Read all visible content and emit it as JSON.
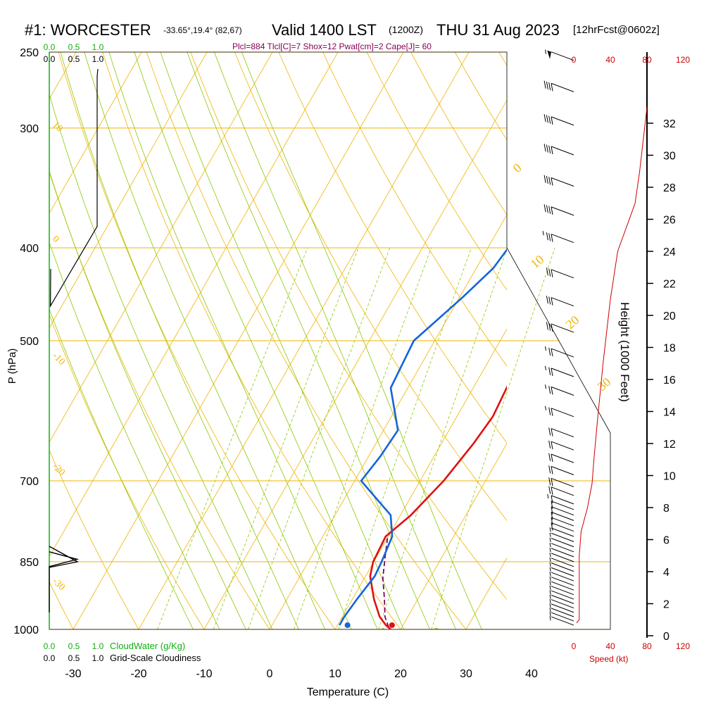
{
  "header": {
    "station": "#1: WORCESTER",
    "coords": "-33.65°,19.4° (82,67)",
    "valid": "Valid 1400 LST",
    "utc": "(1200Z)",
    "date": "THU 31 Aug 2023",
    "forecast": "[12hrFcst@0602z]",
    "indices": "Plcl=884 Tlcl[C]=7 Shox=12 Pwat[cm]=2 Cape[J]= 60"
  },
  "labels": {
    "pressure_axis": "P (hPa)",
    "temperature_axis": "Temperature (C)",
    "height_axis": "Height (1000 Feet)",
    "speed_label": "Speed (kt)",
    "cloudwater_label": "CloudWater (g/Kg)",
    "cloudiness_label": "Grid-Scale Cloudiness",
    "cloud_top_ticks": [
      "0.0",
      "0.5",
      "1.0"
    ],
    "speed_ticks": [
      "0",
      "40",
      "80",
      "120"
    ]
  },
  "colors": {
    "isotherm": "#f0b400",
    "dry_adiabat": "#f0b400",
    "moist_adiabat": "#8cc800",
    "mixing_ratio": "#8cc800",
    "temperature": "#e01010",
    "dewpoint": "#1464dc",
    "parcel": "#800060",
    "cloudwater": "#10b010",
    "speed": "#cc0000",
    "indices": "#880055"
  },
  "chart_data": {
    "type": "skew-t",
    "pressure_ticks": [
      250,
      300,
      400,
      500,
      700,
      850,
      1000
    ],
    "temperature_ticks": [
      -30,
      -20,
      -10,
      0,
      10,
      20,
      30,
      40
    ],
    "height_ticks_kft": [
      0,
      2,
      4,
      6,
      8,
      10,
      12,
      14,
      16,
      18,
      20,
      22,
      24,
      26,
      28,
      30,
      32
    ],
    "isotherm_labels": [
      {
        "value": "0",
        "p": 340
      },
      {
        "value": "10",
        "p": 430
      },
      {
        "value": "20",
        "p": 490
      },
      {
        "value": "30",
        "p": 580
      }
    ],
    "dry_adiabat_labels": [
      {
        "value": "10",
        "p": 300
      },
      {
        "value": "-10",
        "p": 520
      },
      {
        "value": "-20",
        "p": 690
      },
      {
        "value": "-30",
        "p": 880
      },
      {
        "value": "0",
        "p": 395
      }
    ],
    "mixing_ratio_labels": [
      "1",
      "2",
      "3",
      "5",
      "8",
      "12",
      "20"
    ],
    "temperature_profile": [
      {
        "p": 1000,
        "t": 18.5
      },
      {
        "p": 990,
        "t": 17.4
      },
      {
        "p": 970,
        "t": 15.7
      },
      {
        "p": 930,
        "t": 13.3
      },
      {
        "p": 880,
        "t": 10.7
      },
      {
        "p": 850,
        "t": 9.9
      },
      {
        "p": 800,
        "t": 9.6
      },
      {
        "p": 760,
        "t": 11.6
      },
      {
        "p": 700,
        "t": 13.6
      },
      {
        "p": 640,
        "t": 14.9
      },
      {
        "p": 600,
        "t": 15.5
      },
      {
        "p": 550,
        "t": 15.0
      },
      {
        "p": 500,
        "t": 13.3
      },
      {
        "p": 450,
        "t": 9.8
      },
      {
        "p": 400,
        "t": 6.6
      },
      {
        "p": 350,
        "t": 3.2
      },
      {
        "p": 300,
        "t": 0.2
      },
      {
        "p": 275,
        "t": -1.8
      },
      {
        "p": 260,
        "t": -2.0
      }
    ],
    "dewpoint_profile": [
      {
        "p": 990,
        "t": 10.3
      },
      {
        "p": 970,
        "t": 10.3
      },
      {
        "p": 930,
        "t": 10.7
      },
      {
        "p": 880,
        "t": 11.4
      },
      {
        "p": 850,
        "t": 11.2
      },
      {
        "p": 800,
        "t": 10.6
      },
      {
        "p": 760,
        "t": 8.5
      },
      {
        "p": 700,
        "t": 1.0
      },
      {
        "p": 660,
        "t": 1.8
      },
      {
        "p": 620,
        "t": 2.2
      },
      {
        "p": 560,
        "t": -2.6
      },
      {
        "p": 500,
        "t": -3.2
      },
      {
        "p": 450,
        "t": 0.5
      },
      {
        "p": 420,
        "t": 2.6
      },
      {
        "p": 390,
        "t": 3.4
      },
      {
        "p": 370,
        "t": 2.4
      },
      {
        "p": 340,
        "t": -0.4
      },
      {
        "p": 300,
        "t": -3.2
      },
      {
        "p": 275,
        "t": -5.0
      },
      {
        "p": 260,
        "t": -5.6
      }
    ],
    "parcel_profile": [
      {
        "p": 995,
        "t": 18.0
      },
      {
        "p": 970,
        "t": 16.5
      },
      {
        "p": 930,
        "t": 14.9
      },
      {
        "p": 884,
        "t": 12.8
      },
      {
        "p": 840,
        "t": 11.3
      },
      {
        "p": 800,
        "t": 9.9
      }
    ],
    "surface_temperature": 18.8,
    "surface_dewpoint": 12.0,
    "cloudwater_profile": [
      {
        "p": 960,
        "v": 0.0
      },
      {
        "p": 860,
        "v": 0.0
      },
      {
        "p": 845,
        "v": 0.45
      },
      {
        "p": 830,
        "v": 0.0
      }
    ],
    "cloudiness_profile": [
      {
        "p": 265,
        "v": 0.85
      },
      {
        "p": 380,
        "v": 0.85
      },
      {
        "p": 460,
        "v": 0.02
      }
    ],
    "wind_speed_profile": [
      {
        "h": 0.8,
        "kt": 3
      },
      {
        "h": 1.0,
        "kt": 6
      },
      {
        "h": 2.0,
        "kt": 6
      },
      {
        "h": 5.0,
        "kt": 6
      },
      {
        "h": 6.5,
        "kt": 8
      },
      {
        "h": 8.0,
        "kt": 15
      },
      {
        "h": 9.5,
        "kt": 20
      },
      {
        "h": 11.0,
        "kt": 22
      },
      {
        "h": 13.5,
        "kt": 26
      },
      {
        "h": 17.0,
        "kt": 32
      },
      {
        "h": 21.0,
        "kt": 40
      },
      {
        "h": 24.0,
        "kt": 48
      },
      {
        "h": 27.0,
        "kt": 67
      },
      {
        "h": 29.0,
        "kt": 72
      },
      {
        "h": 31.0,
        "kt": 76
      },
      {
        "h": 33.0,
        "kt": 80
      }
    ],
    "wind_barbs": [
      {
        "p": 990,
        "kt": 5
      },
      {
        "p": 980,
        "kt": 5
      },
      {
        "p": 970,
        "kt": 5
      },
      {
        "p": 960,
        "kt": 5
      },
      {
        "p": 950,
        "kt": 5
      },
      {
        "p": 940,
        "kt": 5
      },
      {
        "p": 930,
        "kt": 5
      },
      {
        "p": 920,
        "kt": 5
      },
      {
        "p": 910,
        "kt": 5
      },
      {
        "p": 900,
        "kt": 5
      },
      {
        "p": 890,
        "kt": 5
      },
      {
        "p": 880,
        "kt": 5
      },
      {
        "p": 870,
        "kt": 5
      },
      {
        "p": 860,
        "kt": 5
      },
      {
        "p": 850,
        "kt": 5
      },
      {
        "p": 840,
        "kt": 5
      },
      {
        "p": 830,
        "kt": 5
      },
      {
        "p": 820,
        "kt": 5
      },
      {
        "p": 810,
        "kt": 5
      },
      {
        "p": 800,
        "kt": 5
      },
      {
        "p": 790,
        "kt": 10
      },
      {
        "p": 780,
        "kt": 10
      },
      {
        "p": 770,
        "kt": 10
      },
      {
        "p": 760,
        "kt": 10
      },
      {
        "p": 750,
        "kt": 10
      },
      {
        "p": 740,
        "kt": 15
      },
      {
        "p": 725,
        "kt": 20
      },
      {
        "p": 710,
        "kt": 20
      },
      {
        "p": 690,
        "kt": 20
      },
      {
        "p": 670,
        "kt": 20
      },
      {
        "p": 650,
        "kt": 20
      },
      {
        "p": 630,
        "kt": 20
      },
      {
        "p": 600,
        "kt": 25
      },
      {
        "p": 570,
        "kt": 25
      },
      {
        "p": 545,
        "kt": 25
      },
      {
        "p": 520,
        "kt": 25
      },
      {
        "p": 490,
        "kt": 30
      },
      {
        "p": 460,
        "kt": 30
      },
      {
        "p": 430,
        "kt": 30
      },
      {
        "p": 395,
        "kt": 35
      },
      {
        "p": 370,
        "kt": 40
      },
      {
        "p": 345,
        "kt": 40
      },
      {
        "p": 320,
        "kt": 40
      },
      {
        "p": 298,
        "kt": 40
      },
      {
        "p": 275,
        "kt": 40
      },
      {
        "p": 255,
        "kt": 55
      }
    ]
  }
}
